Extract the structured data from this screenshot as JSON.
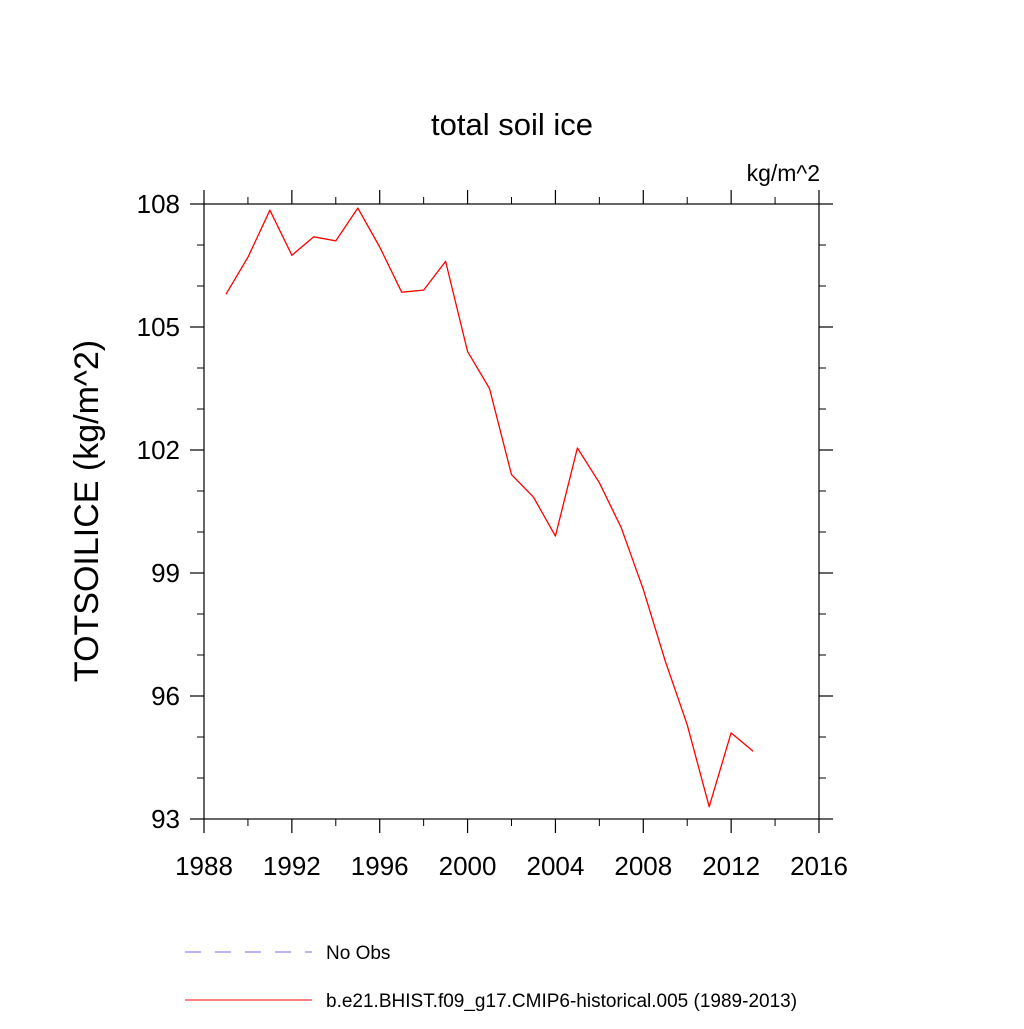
{
  "chart_data": {
    "type": "line",
    "title": "total soil ice",
    "units_label": "kg/m^2",
    "ylabel": "TOTSOILICE  (kg/m^2)",
    "xlabel": "",
    "xlim": [
      1988,
      2016
    ],
    "ylim": [
      93,
      108
    ],
    "x_ticks": [
      1988,
      1992,
      1996,
      2000,
      2004,
      2008,
      2012,
      2016
    ],
    "x_minor_step": 2,
    "y_ticks": [
      93,
      96,
      99,
      102,
      105,
      108
    ],
    "y_minor_step": 1,
    "grid": false,
    "legend_placement": "bottom",
    "series": [
      {
        "name": "b.e21.BHIST.f09_g17.CMIP6-historical.005 (1989-2013)",
        "color": "#ff0000",
        "dash": "solid",
        "x": [
          1989,
          1990,
          1991,
          1992,
          1993,
          1994,
          1995,
          1996,
          1997,
          1998,
          1999,
          2000,
          2001,
          2002,
          2003,
          2004,
          2005,
          2006,
          2007,
          2008,
          2009,
          2010,
          2011,
          2012,
          2013
        ],
        "y": [
          105.8,
          106.7,
          107.85,
          106.75,
          107.2,
          107.1,
          107.9,
          106.95,
          105.85,
          105.9,
          106.6,
          104.4,
          103.5,
          101.4,
          100.85,
          99.9,
          102.05,
          101.2,
          100.1,
          98.6,
          96.85,
          95.3,
          93.3,
          95.1,
          94.65
        ]
      }
    ],
    "legend": [
      {
        "label": "No Obs",
        "color": "#7b68ee",
        "dash": "dashed"
      },
      {
        "label": "b.e21.BHIST.f09_g17.CMIP6-historical.005 (1989-2013)",
        "color": "#ff0000",
        "dash": "solid"
      }
    ]
  }
}
